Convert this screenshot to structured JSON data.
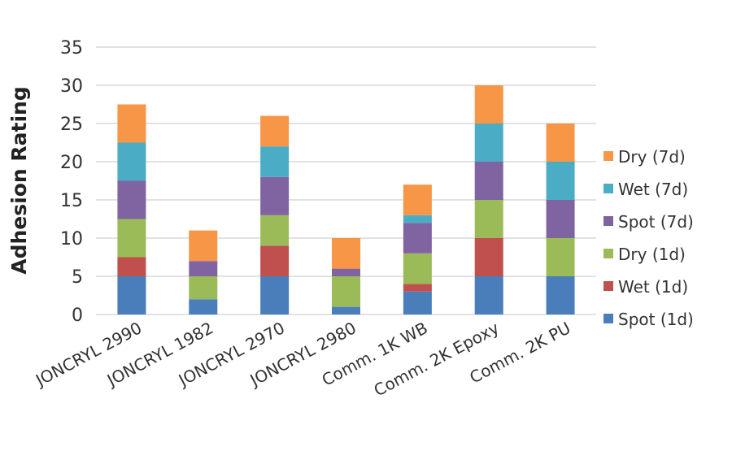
{
  "chart_data": {
    "type": "bar",
    "stacked": true,
    "title": "",
    "xlabel": "",
    "ylabel": "Adhesion Rating",
    "ylim": [
      0,
      35
    ],
    "yticks": [
      0,
      5,
      10,
      15,
      20,
      25,
      30,
      35
    ],
    "grid": true,
    "legend_position": "right",
    "categories": [
      "JONCRYL 2990",
      "JONCRYL 1982",
      "JONCRYL 2970",
      "JONCRYL 2980",
      "Comm. 1K WB",
      "Comm. 2K Epoxy",
      "Comm. 2K PU"
    ],
    "series": [
      {
        "name": "Spot (1d)",
        "color": "#4a7ebb",
        "values": [
          5,
          2,
          5,
          1,
          3,
          5,
          5
        ]
      },
      {
        "name": "Wet (1d)",
        "color": "#c0504d",
        "values": [
          2.5,
          0,
          4,
          0,
          1,
          5,
          0
        ]
      },
      {
        "name": "Dry (1d)",
        "color": "#9bbb59",
        "values": [
          5,
          3,
          4,
          4,
          4,
          5,
          5
        ]
      },
      {
        "name": "Spot (7d)",
        "color": "#8064a2",
        "values": [
          5,
          2,
          5,
          1,
          4,
          5,
          5
        ]
      },
      {
        "name": "Wet (7d)",
        "color": "#4bacc6",
        "values": [
          5,
          0,
          4,
          0,
          1,
          5,
          5
        ]
      },
      {
        "name": "Dry (7d)",
        "color": "#f79646",
        "values": [
          5,
          4,
          4,
          4,
          4,
          5,
          5
        ]
      }
    ]
  }
}
